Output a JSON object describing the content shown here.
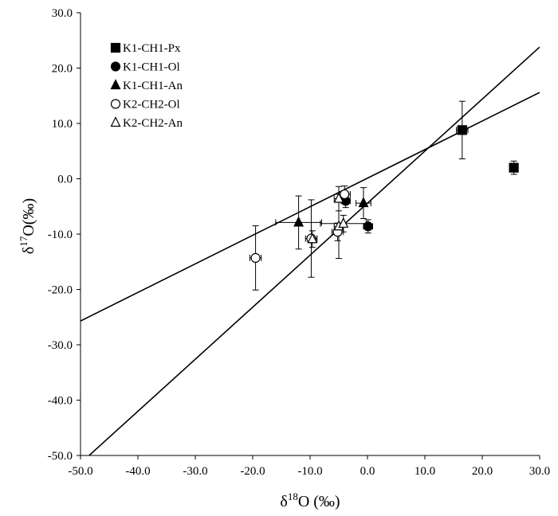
{
  "chart_data": {
    "type": "scatter",
    "title": "",
    "xlabel": "δ18O (‰)",
    "ylabel": "δ17O(‰)",
    "xlim": [
      -50,
      30
    ],
    "ylim": [
      -50,
      30
    ],
    "x_ticks": [
      "-50.0",
      "-40.0",
      "-30.0",
      "-20.0",
      "-10.0",
      "0.0",
      "10.0",
      "20.0",
      "30.0"
    ],
    "y_ticks": [
      "30.0",
      "20.0",
      "10.0",
      "0.0",
      "-10.0",
      "-20.0",
      "-30.0",
      "-40.0",
      "-50.0"
    ],
    "grid": false,
    "legend_position": "top-left",
    "series": [
      {
        "name": "K1-CH1-Px",
        "marker": "filled-square",
        "points": [
          {
            "x": 16.5,
            "y": 8.8,
            "xerr": 1.0,
            "yerr": 5.2
          },
          {
            "x": 25.5,
            "y": 2.0,
            "xerr": 0.4,
            "yerr": 1.2
          }
        ]
      },
      {
        "name": "K1-CH1-Ol",
        "marker": "filled-circle",
        "points": [
          {
            "x": -3.8,
            "y": -4.0,
            "xerr": 0.8,
            "yerr": 1.2
          },
          {
            "x": 0.1,
            "y": -8.6,
            "xerr": 0.8,
            "yerr": 1.2
          }
        ]
      },
      {
        "name": "K1-CH1-An",
        "marker": "filled-triangle",
        "points": [
          {
            "x": -12.0,
            "y": -7.9,
            "xerr": 4.0,
            "yerr": 4.8
          },
          {
            "x": -0.7,
            "y": -4.4,
            "xerr": 1.3,
            "yerr": 2.8
          }
        ]
      },
      {
        "name": "K2-CH2-Ol",
        "marker": "open-circle",
        "points": [
          {
            "x": -19.5,
            "y": -14.3,
            "xerr": 1.0,
            "yerr": 5.8
          },
          {
            "x": -9.8,
            "y": -10.8,
            "xerr": 1.0,
            "yerr": 7.0
          },
          {
            "x": -4.0,
            "y": -2.8,
            "xerr": 1.0,
            "yerr": 1.5
          },
          {
            "x": -5.2,
            "y": -9.6,
            "xerr": 1.0,
            "yerr": 1.6
          }
        ]
      },
      {
        "name": "K2-CH2-An",
        "marker": "open-triangle",
        "points": [
          {
            "x": -9.6,
            "y": -10.9,
            "xerr": 0.8,
            "yerr": 1.5
          },
          {
            "x": -5.0,
            "y": -3.6,
            "xerr": 0.8,
            "yerr": 2.2
          },
          {
            "x": -5.0,
            "y": -8.6,
            "xerr": 0.8,
            "yerr": 5.8
          },
          {
            "x": -4.2,
            "y": -8.1,
            "xerr": 4.0,
            "yerr": 1.5
          }
        ]
      }
    ],
    "lines": [
      {
        "x1": -50,
        "y1": -25.7,
        "x2": 30,
        "y2": 15.6
      },
      {
        "x1": -48.5,
        "y1": -50,
        "x2": 30,
        "y2": 23.8
      }
    ]
  }
}
